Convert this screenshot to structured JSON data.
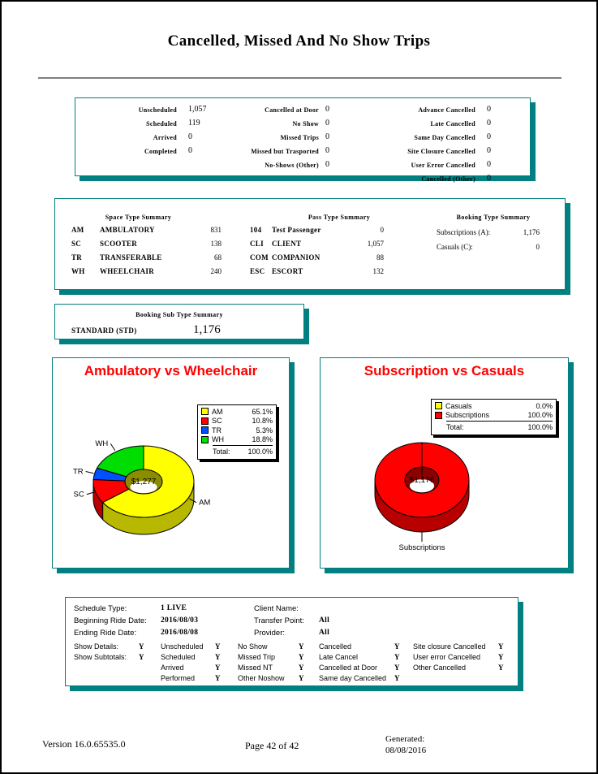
{
  "page": {
    "title": "Cancelled, Missed And No Show Trips"
  },
  "trip_stats": {
    "col1": [
      {
        "label": "Unscheduled",
        "value": "1,057"
      },
      {
        "label": "Scheduled",
        "value": "119"
      },
      {
        "label": "Arrived",
        "value": "0"
      },
      {
        "label": "Completed",
        "value": "0"
      }
    ],
    "col2": [
      {
        "label": "Cancelled at Door",
        "value": "0"
      },
      {
        "label": "No Show",
        "value": "0"
      },
      {
        "label": "Missed Trips",
        "value": "0"
      },
      {
        "label": "Missed but Trasported",
        "value": "0"
      },
      {
        "label": "No-Shows (Other)",
        "value": "0"
      }
    ],
    "col3": [
      {
        "label": "Advance Cancelled",
        "value": "0"
      },
      {
        "label": "Late Cancelled",
        "value": "0"
      },
      {
        "label": "Same Day Cancelled",
        "value": "0"
      },
      {
        "label": "Site Closure Cancelled",
        "value": "0"
      },
      {
        "label": "User Error Cancelled",
        "value": "0"
      },
      {
        "label": "Cancelled (Other)",
        "value": "0"
      }
    ]
  },
  "summaries": {
    "space": {
      "heading": "Space Type Summary",
      "rows": [
        {
          "code": "AM",
          "label": "AMBULATORY",
          "value": "831"
        },
        {
          "code": "SC",
          "label": "SCOOTER",
          "value": "138"
        },
        {
          "code": "TR",
          "label": "TRANSFERABLE",
          "value": "68"
        },
        {
          "code": "WH",
          "label": "WHEELCHAIR",
          "value": "240"
        }
      ]
    },
    "pass": {
      "heading": "Pass Type Summary",
      "rows": [
        {
          "code": "104",
          "label": "Test Passenger",
          "value": "0"
        },
        {
          "code": "CLI",
          "label": "CLIENT",
          "value": "1,057"
        },
        {
          "code": "COM",
          "label": "COMPANION",
          "value": "88"
        },
        {
          "code": "ESC",
          "label": "ESCORT",
          "value": "132"
        }
      ]
    },
    "booking": {
      "heading": "Booking Type Summary",
      "rows": [
        {
          "label": "Subscriptions (A):",
          "value": "1,176"
        },
        {
          "label": "Casuals (C):",
          "value": "0"
        }
      ]
    }
  },
  "booking_sub_type": {
    "heading": "Booking Sub Type Summary",
    "label": "STANDARD  (STD)",
    "value": "1,176"
  },
  "chart_data": [
    {
      "type": "pie",
      "title": "Ambulatory vs Wheelchair",
      "title_color": "#ff0000",
      "legend_position": "right",
      "donut": true,
      "center_label": "$1,277",
      "slices": [
        {
          "label": "AM",
          "pct": 65.1,
          "pct_label": "65.1%",
          "color": "#ffff00"
        },
        {
          "label": "SC",
          "pct": 10.8,
          "pct_label": "10.8%",
          "color": "#ff0000"
        },
        {
          "label": "TR",
          "pct": 5.3,
          "pct_label": "5.3%",
          "color": "#0050ff"
        },
        {
          "label": "WH",
          "pct": 18.8,
          "pct_label": "18.8%",
          "color": "#00dd00"
        }
      ],
      "total_label": "Total:",
      "total_value": "100.0%"
    },
    {
      "type": "pie",
      "title": "Subscription vs Casuals",
      "title_color": "#ff0000",
      "legend_position": "right",
      "donut": true,
      "center_label": "$1,176",
      "slices": [
        {
          "label": "Casuals",
          "pct": 0.0,
          "pct_label": "0.0%",
          "color": "#ffff00"
        },
        {
          "label": "Subscriptions",
          "pct": 100.0,
          "pct_label": "100.0%",
          "color": "#ff0000"
        }
      ],
      "total_label": "Total:",
      "total_value": "100.0%"
    }
  ],
  "schedule_info": {
    "left_rows": [
      {
        "label": "Schedule Type:",
        "value": "1 LIVE"
      },
      {
        "label": "Beginning Ride Date:",
        "value": "2016/08/03"
      },
      {
        "label": "Ending Ride Date:",
        "value": "2016/08/08"
      }
    ],
    "right_rows": [
      {
        "label": "Client Name:",
        "value": ""
      },
      {
        "label": "Transfer Point:",
        "value": "All"
      },
      {
        "label": "Provider:",
        "value": "All"
      }
    ],
    "flags_a": [
      {
        "label": "Show Details:",
        "value": "Y"
      },
      {
        "label": "Show Subtotals:",
        "value": "Y"
      }
    ],
    "flags_b": [
      {
        "label": "Unscheduled",
        "value": "Y"
      },
      {
        "label": "Scheduled",
        "value": "Y"
      },
      {
        "label": "Arrived",
        "value": "Y"
      },
      {
        "label": "Performed",
        "value": "Y"
      }
    ],
    "flags_c": [
      {
        "label": "No Show",
        "value": "Y"
      },
      {
        "label": "Missed Trip",
        "value": "Y"
      },
      {
        "label": "Missed NT",
        "value": "Y"
      },
      {
        "label": "Other Noshow",
        "value": "Y"
      }
    ],
    "flags_d": [
      {
        "label": "Cancelled",
        "value": "Y"
      },
      {
        "label": "Late Cancel",
        "value": "Y"
      },
      {
        "label": "Cancelled at Door",
        "value": "Y"
      },
      {
        "label": "Same day Cancelled",
        "value": "Y"
      }
    ],
    "flags_e": [
      {
        "label": "Site closure Cancelled",
        "value": "Y"
      },
      {
        "label": "User error Cancelled",
        "value": "Y"
      },
      {
        "label": "Other Cancelled",
        "value": "Y"
      }
    ]
  },
  "page_footer": {
    "version": "Version 16.0.65535.0",
    "page": "Page 42 of 42",
    "generated_label": "Generated:",
    "generated_date": "08/08/2016"
  },
  "colors": {
    "accent_teal": "#008080",
    "chart_title_red": "#ff0000"
  }
}
